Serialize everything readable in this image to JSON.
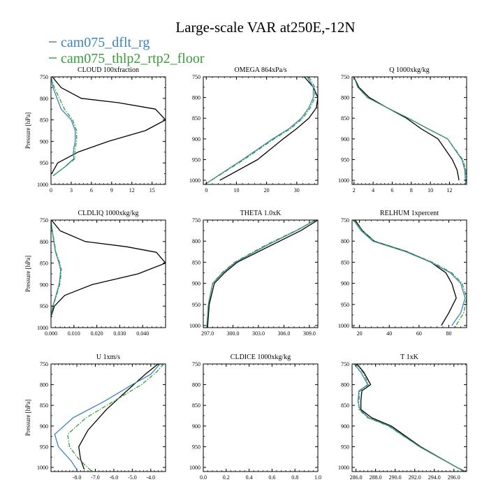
{
  "figure": {
    "title": "Large-scale VAR at250E,-12N",
    "legend": [
      {
        "label": "cam075_dflt_rg",
        "color": "#3b83b8",
        "dash": "solid"
      },
      {
        "label": "cam075_thlp2_rtp2_floor",
        "color": "#3a9b3a",
        "dash": "dashdot"
      }
    ]
  },
  "chart_data": [
    {
      "type": "line",
      "title": "CLOUD  100xfraction",
      "ylabel": "Pressure [hPa]",
      "xlim": [
        0,
        17
      ],
      "ylim": [
        1000,
        750
      ],
      "xticks": [
        0,
        3,
        6,
        9,
        12,
        15
      ],
      "xtick_labels": [
        "0",
        "3",
        "6",
        "9",
        "12",
        "15"
      ],
      "yticks": [
        750,
        800,
        850,
        900,
        950,
        1000
      ],
      "ytick_labels": [
        "750",
        "800",
        "850",
        "900",
        "950",
        "1000"
      ],
      "series": [
        {
          "color": "#000000",
          "dash": "solid",
          "width": 1.3,
          "x": [
            0.2,
            1.5,
            4.5,
            10.0,
            15.5,
            17.0,
            14.0,
            8.5,
            4.0,
            1.0,
            0.1
          ],
          "y": [
            750,
            775,
            800,
            810,
            825,
            850,
            875,
            900,
            925,
            950,
            975
          ]
        },
        {
          "color": "#3b83b8",
          "dash": "solid",
          "width": 1.3,
          "x": [
            0.0,
            0.3,
            1.5,
            3.0,
            3.6,
            3.6,
            3.4,
            3.3,
            3.4,
            2.0,
            0.3
          ],
          "y": [
            750,
            775,
            825,
            850,
            875,
            900,
            915,
            930,
            940,
            960,
            980
          ]
        },
        {
          "color": "#3a9b3a",
          "dash": "dashdot",
          "width": 1.3,
          "x": [
            0.0,
            0.5,
            2.0,
            3.2,
            3.8,
            3.8,
            3.6,
            3.5,
            3.6,
            2.0,
            0.3
          ],
          "y": [
            750,
            775,
            825,
            850,
            875,
            900,
            915,
            930,
            940,
            960,
            980
          ]
        }
      ]
    },
    {
      "type": "line",
      "title": "OMEGA  864xPa/s",
      "ylabel": "",
      "xlim": [
        -1,
        37
      ],
      "ylim": [
        1010,
        750
      ],
      "xticks": [
        0,
        10,
        20,
        30
      ],
      "xtick_labels": [
        "0",
        "10",
        "20",
        "30"
      ],
      "yticks": [
        750,
        800,
        850,
        900,
        950,
        1000
      ],
      "ytick_labels": [
        "750",
        "800",
        "850",
        "900",
        "950",
        "1000"
      ],
      "series": [
        {
          "color": "#000000",
          "dash": "solid",
          "width": 1.3,
          "x": [
            32.5,
            35.5,
            37.0,
            36.5,
            34.0,
            30.0,
            25.5,
            17.0,
            4.5
          ],
          "y": [
            750,
            775,
            800,
            825,
            850,
            875,
            900,
            950,
            1000
          ]
        },
        {
          "color": "#3b83b8",
          "dash": "solid",
          "width": 1.3,
          "x": [
            33.5,
            35.5,
            35.5,
            34.0,
            31.5,
            27.5,
            22.0,
            12.0,
            -0.5
          ],
          "y": [
            750,
            775,
            800,
            825,
            850,
            875,
            900,
            950,
            1010
          ]
        },
        {
          "color": "#3a9b3a",
          "dash": "dashdot",
          "width": 1.3,
          "x": [
            34.0,
            36.0,
            36.0,
            34.5,
            32.0,
            28.0,
            22.5,
            12.5,
            -0.5
          ],
          "y": [
            750,
            775,
            800,
            825,
            850,
            875,
            900,
            950,
            1010
          ]
        }
      ]
    },
    {
      "type": "line",
      "title": "Q  1000xkg/kg",
      "ylabel": "",
      "xlim": [
        1.8,
        13.8
      ],
      "ylim": [
        1010,
        750
      ],
      "xticks": [
        2,
        4,
        6,
        8,
        10,
        12
      ],
      "xtick_labels": [
        "2",
        "4",
        "6",
        "8",
        "10",
        "12"
      ],
      "yticks": [
        750,
        800,
        850,
        900,
        950,
        1000
      ],
      "ytick_labels": [
        "750",
        "800",
        "850",
        "900",
        "950",
        "1000"
      ],
      "series": [
        {
          "color": "#000000",
          "dash": "solid",
          "width": 1.3,
          "x": [
            2.0,
            2.5,
            3.6,
            5.5,
            7.5,
            9.0,
            10.8,
            12.3,
            12.8,
            13.0
          ],
          "y": [
            750,
            775,
            800,
            825,
            850,
            875,
            900,
            950,
            975,
            1000
          ]
        },
        {
          "color": "#3b83b8",
          "dash": "solid",
          "width": 1.3,
          "x": [
            2.0,
            2.4,
            3.4,
            5.5,
            7.7,
            9.7,
            11.8,
            13.3,
            13.6,
            13.7
          ],
          "y": [
            750,
            775,
            800,
            825,
            850,
            875,
            900,
            950,
            975,
            1010
          ]
        },
        {
          "color": "#3a9b3a",
          "dash": "dashdot",
          "width": 1.3,
          "x": [
            2.0,
            2.4,
            3.4,
            5.5,
            7.7,
            9.7,
            11.8,
            13.4,
            13.7,
            13.8
          ],
          "y": [
            750,
            775,
            800,
            825,
            850,
            875,
            900,
            950,
            975,
            1010
          ]
        }
      ]
    },
    {
      "type": "line",
      "title": "CLDLIQ  1000xkg/kg",
      "ylabel": "Pressure [hPa]",
      "xlim": [
        0,
        0.05
      ],
      "ylim": [
        1000,
        750
      ],
      "xticks": [
        0,
        0.01,
        0.02,
        0.03,
        0.04
      ],
      "xtick_labels": [
        "0.000",
        "0.010",
        "0.020",
        "0.030",
        "0.040"
      ],
      "yticks": [
        750,
        800,
        850,
        900,
        950,
        1000
      ],
      "ytick_labels": [
        "750",
        "800",
        "850",
        "900",
        "950",
        "1000"
      ],
      "series": [
        {
          "color": "#000000",
          "dash": "solid",
          "width": 1.3,
          "x": [
            0.0002,
            0.004,
            0.015,
            0.033,
            0.046,
            0.05,
            0.038,
            0.018,
            0.006,
            0.0015,
            0.0
          ],
          "y": [
            750,
            775,
            800,
            812,
            825,
            850,
            875,
            900,
            925,
            950,
            975
          ]
        },
        {
          "color": "#3b83b8",
          "dash": "solid",
          "width": 1.3,
          "x": [
            0.0,
            0.0005,
            0.002,
            0.0035,
            0.0042,
            0.004,
            0.0035,
            0.0022,
            0.0008,
            0.0
          ],
          "y": [
            750,
            775,
            825,
            850,
            865,
            880,
            900,
            925,
            950,
            975
          ]
        },
        {
          "color": "#3a9b3a",
          "dash": "dashdot",
          "width": 1.3,
          "x": [
            0.0,
            0.0006,
            0.0022,
            0.0038,
            0.0045,
            0.0043,
            0.0038,
            0.0024,
            0.0009,
            0.0
          ],
          "y": [
            750,
            775,
            825,
            850,
            865,
            880,
            900,
            925,
            950,
            975
          ]
        }
      ]
    },
    {
      "type": "line",
      "title": "THETA  1.0xK",
      "ylabel": "",
      "xlim": [
        296.5,
        310.0
      ],
      "ylim": [
        1005,
        750
      ],
      "xticks": [
        297.0,
        300.0,
        303.0,
        306.0,
        309.0
      ],
      "xtick_labels": [
        "297.0",
        "300.0",
        "303.0",
        "306.0",
        "309.0"
      ],
      "yticks": [
        750,
        800,
        850,
        900,
        950,
        1000
      ],
      "ytick_labels": [
        "750",
        "800",
        "850",
        "900",
        "950",
        "1000"
      ],
      "series": [
        {
          "color": "#000000",
          "dash": "solid",
          "width": 1.3,
          "x": [
            310.0,
            308.0,
            304.5,
            300.5,
            299.0,
            297.8,
            297.2,
            297.0
          ],
          "y": [
            750,
            775,
            810,
            850,
            875,
            900,
            950,
            1005
          ]
        },
        {
          "color": "#3b83b8",
          "dash": "solid",
          "width": 1.3,
          "x": [
            309.7,
            307.5,
            304.0,
            300.3,
            298.8,
            297.6,
            297.1,
            296.9
          ],
          "y": [
            750,
            775,
            810,
            850,
            875,
            900,
            950,
            1005
          ]
        },
        {
          "color": "#3a9b3a",
          "dash": "dashdot",
          "width": 1.3,
          "x": [
            309.7,
            307.4,
            303.8,
            300.2,
            298.7,
            297.6,
            297.1,
            296.9
          ],
          "y": [
            750,
            775,
            810,
            850,
            875,
            900,
            950,
            1005
          ]
        }
      ]
    },
    {
      "type": "line",
      "title": "RELHUM  1xpercent",
      "ylabel": "",
      "xlim": [
        15,
        92
      ],
      "ylim": [
        1005,
        750
      ],
      "xticks": [
        20,
        40,
        60,
        80
      ],
      "xtick_labels": [
        "20",
        "40",
        "60",
        "80"
      ],
      "yticks": [
        750,
        800,
        850,
        900,
        950,
        1000
      ],
      "ytick_labels": [
        "750",
        "800",
        "850",
        "900",
        "950",
        "1000"
      ],
      "series": [
        {
          "color": "#000000",
          "dash": "solid",
          "width": 1.3,
          "x": [
            17,
            22,
            30,
            52,
            68,
            78,
            82,
            85,
            80,
            75
          ],
          "y": [
            750,
            775,
            800,
            825,
            850,
            875,
            900,
            935,
            970,
            1000
          ]
        },
        {
          "color": "#3b83b8",
          "dash": "solid",
          "width": 1.3,
          "x": [
            16,
            21,
            29,
            51,
            68,
            81,
            88,
            91,
            88,
            82
          ],
          "y": [
            750,
            775,
            800,
            825,
            850,
            875,
            900,
            935,
            970,
            1000
          ]
        },
        {
          "color": "#3a9b3a",
          "dash": "dashdot",
          "width": 1.3,
          "x": [
            16,
            22,
            30,
            52,
            69,
            82,
            89,
            92,
            90,
            84
          ],
          "y": [
            750,
            775,
            800,
            825,
            850,
            875,
            900,
            935,
            970,
            1005
          ]
        }
      ]
    },
    {
      "type": "line",
      "title": "U  1xm/s",
      "ylabel": "Pressure [hPa]",
      "xlim": [
        -9.4,
        -3.2
      ],
      "ylim": [
        1010,
        750
      ],
      "xticks": [
        -8.0,
        -7.0,
        -6.0,
        -5.0,
        -4.0
      ],
      "xtick_labels": [
        "-8.0",
        "-7.0",
        "-6.0",
        "-5.0",
        "-4.0"
      ],
      "yticks": [
        750,
        800,
        850,
        900,
        950,
        1000
      ],
      "ytick_labels": [
        "750",
        "800",
        "850",
        "900",
        "950",
        "1000"
      ],
      "series": [
        {
          "color": "#000000",
          "dash": "solid",
          "width": 1.3,
          "x": [
            -3.6,
            -4.3,
            -5.3,
            -6.4,
            -7.4,
            -7.9,
            -7.8,
            -7.6
          ],
          "y": [
            750,
            775,
            815,
            860,
            910,
            950,
            980,
            1005
          ]
        },
        {
          "color": "#3b83b8",
          "dash": "solid",
          "width": 1.3,
          "x": [
            -3.5,
            -4.0,
            -5.0,
            -6.5,
            -8.2,
            -9.2,
            -9.0,
            -8.3,
            -8.0
          ],
          "y": [
            750,
            775,
            800,
            840,
            880,
            920,
            950,
            985,
            1005
          ]
        },
        {
          "color": "#3a9b3a",
          "dash": "dashdot",
          "width": 1.3,
          "x": [
            -3.3,
            -3.7,
            -4.5,
            -6.0,
            -7.5,
            -8.5,
            -8.4,
            -7.9,
            -7.3,
            -7.2
          ],
          "y": [
            750,
            770,
            800,
            840,
            880,
            920,
            950,
            980,
            1005,
            1010
          ]
        }
      ]
    },
    {
      "type": "line",
      "title": "CLDICE  1000xkg/kg",
      "ylabel": "",
      "xlim": [
        0,
        1
      ],
      "ylim": [
        1010,
        750
      ],
      "xticks": [
        0,
        0.2,
        0.4,
        0.6,
        0.8,
        1.0
      ],
      "xtick_labels": [
        "0.0",
        "0.2",
        "0.4",
        "0.6",
        "0.8",
        "1.0"
      ],
      "yticks": [
        750,
        800,
        850,
        900,
        950,
        1000
      ],
      "ytick_labels": [
        "750",
        "800",
        "850",
        "900",
        "950",
        "1000"
      ],
      "series": []
    },
    {
      "type": "line",
      "title": "T  1xK",
      "ylabel": "",
      "xlim": [
        285.6,
        297.3
      ],
      "ylim": [
        1010,
        750
      ],
      "xticks": [
        286.0,
        288.0,
        290.0,
        292.0,
        294.0,
        296.0
      ],
      "xtick_labels": [
        "286.0",
        "288.0",
        "290.0",
        "292.0",
        "294.0",
        "296.0"
      ],
      "yticks": [
        750,
        800,
        850,
        900,
        950,
        1000
      ],
      "ytick_labels": [
        "750",
        "800",
        "850",
        "900",
        "950",
        "1000"
      ],
      "series": [
        {
          "color": "#000000",
          "dash": "solid",
          "width": 1.3,
          "x": [
            286.1,
            286.8,
            287.5,
            286.6,
            286.5,
            286.5,
            287.6,
            289.6,
            292.6,
            296.3,
            297.1
          ],
          "y": [
            750,
            770,
            800,
            815,
            840,
            860,
            880,
            900,
            950,
            1000,
            1010
          ]
        },
        {
          "color": "#3b83b8",
          "dash": "solid",
          "width": 1.3,
          "x": [
            285.8,
            286.5,
            287.2,
            286.3,
            286.2,
            286.4,
            287.3,
            289.4,
            292.5,
            296.3,
            297.2
          ],
          "y": [
            750,
            770,
            800,
            815,
            840,
            860,
            880,
            900,
            950,
            1000,
            1010
          ]
        },
        {
          "color": "#3a9b3a",
          "dash": "dashdot",
          "width": 1.3,
          "x": [
            286.0,
            286.7,
            287.3,
            286.4,
            286.3,
            286.3,
            287.2,
            289.3,
            292.5,
            296.3,
            297.2
          ],
          "y": [
            750,
            770,
            800,
            815,
            840,
            860,
            880,
            900,
            950,
            1000,
            1010
          ]
        }
      ]
    }
  ]
}
